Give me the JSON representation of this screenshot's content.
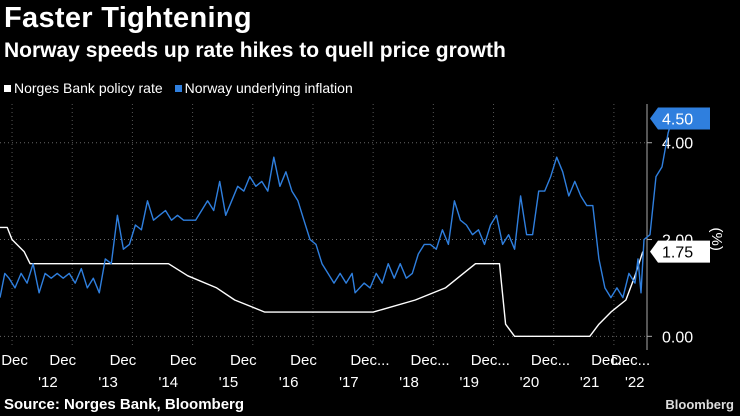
{
  "title": "Faster Tightening",
  "subtitle": "Norway speeds up rate hikes to quell price growth",
  "footer": "Source: Norges Bank, Bloomberg",
  "brand": "Bloomberg",
  "colors": {
    "policy": "#ffffff",
    "inflation": "#2f7fde",
    "bg": "#000000",
    "grid": "#666666"
  },
  "chart_data": {
    "type": "line",
    "title": "Faster Tightening",
    "ylabel": "(%)",
    "ylim": [
      -0.2,
      4.8
    ],
    "yticks": [
      0.0,
      2.0,
      4.0
    ],
    "ytick_labels": [
      "0.00",
      "2.00",
      "4.00"
    ],
    "month_labels": [
      "Dec",
      "Dec",
      "Dec",
      "Dec",
      "Dec",
      "Dec",
      "Dec...",
      "Dec...",
      "Dec...",
      "Dec...",
      "Dec...",
      "Dec..."
    ],
    "month_x": [
      2011.92,
      2012.92,
      2013.92,
      2014.92,
      2015.92,
      2016.92,
      2017.92,
      2018.92,
      2019.92,
      2020.92,
      2021.92,
      2022.25
    ],
    "year_labels": [
      "'12",
      "'13",
      "'14",
      "'15",
      "'16",
      "'17",
      "'18",
      "'19",
      "'20",
      "'21",
      "'22"
    ],
    "year_x": [
      2012.6,
      2013.6,
      2014.6,
      2015.6,
      2016.6,
      2017.6,
      2018.6,
      2019.6,
      2020.6,
      2021.6,
      2022.35
    ],
    "xlim": [
      2011.8,
      2022.55
    ],
    "series": [
      {
        "name": "Norges Bank policy rate",
        "last_label": "1.75",
        "points": [
          [
            2011.8,
            2.25
          ],
          [
            2011.92,
            2.25
          ],
          [
            2012.0,
            2.0
          ],
          [
            2012.2,
            1.75
          ],
          [
            2012.3,
            1.5
          ],
          [
            2013.0,
            1.5
          ],
          [
            2013.5,
            1.5
          ],
          [
            2014.0,
            1.5
          ],
          [
            2014.6,
            1.5
          ],
          [
            2014.92,
            1.25
          ],
          [
            2015.4,
            1.0
          ],
          [
            2015.7,
            0.75
          ],
          [
            2016.2,
            0.5
          ],
          [
            2017.0,
            0.5
          ],
          [
            2018.0,
            0.5
          ],
          [
            2018.7,
            0.75
          ],
          [
            2019.2,
            1.0
          ],
          [
            2019.45,
            1.25
          ],
          [
            2019.7,
            1.5
          ],
          [
            2020.1,
            1.5
          ],
          [
            2020.2,
            0.25
          ],
          [
            2020.35,
            0.0
          ],
          [
            2021.0,
            0.0
          ],
          [
            2021.6,
            0.0
          ],
          [
            2021.75,
            0.25
          ],
          [
            2021.95,
            0.5
          ],
          [
            2022.2,
            0.75
          ],
          [
            2022.35,
            1.25
          ],
          [
            2022.48,
            1.75
          ]
        ]
      },
      {
        "name": "Norway underlying inflation",
        "last_label": "4.50",
        "points": [
          [
            2011.8,
            0.8
          ],
          [
            2011.88,
            1.3
          ],
          [
            2011.95,
            1.2
          ],
          [
            2012.05,
            1.0
          ],
          [
            2012.15,
            1.3
          ],
          [
            2012.25,
            1.1
          ],
          [
            2012.35,
            1.5
          ],
          [
            2012.45,
            0.9
          ],
          [
            2012.55,
            1.3
          ],
          [
            2012.65,
            1.2
          ],
          [
            2012.75,
            1.3
          ],
          [
            2012.85,
            1.2
          ],
          [
            2012.95,
            1.3
          ],
          [
            2013.05,
            1.1
          ],
          [
            2013.15,
            1.4
          ],
          [
            2013.25,
            1.0
          ],
          [
            2013.35,
            1.2
          ],
          [
            2013.45,
            0.9
          ],
          [
            2013.55,
            1.6
          ],
          [
            2013.65,
            1.5
          ],
          [
            2013.75,
            2.5
          ],
          [
            2013.85,
            1.8
          ],
          [
            2013.95,
            1.9
          ],
          [
            2014.05,
            2.3
          ],
          [
            2014.15,
            2.2
          ],
          [
            2014.25,
            2.8
          ],
          [
            2014.35,
            2.4
          ],
          [
            2014.45,
            2.5
          ],
          [
            2014.55,
            2.6
          ],
          [
            2014.65,
            2.4
          ],
          [
            2014.75,
            2.5
          ],
          [
            2014.85,
            2.4
          ],
          [
            2014.95,
            2.4
          ],
          [
            2015.05,
            2.4
          ],
          [
            2015.15,
            2.6
          ],
          [
            2015.25,
            2.8
          ],
          [
            2015.35,
            2.6
          ],
          [
            2015.45,
            3.2
          ],
          [
            2015.55,
            2.5
          ],
          [
            2015.65,
            2.8
          ],
          [
            2015.75,
            3.1
          ],
          [
            2015.85,
            3.0
          ],
          [
            2015.95,
            3.3
          ],
          [
            2016.05,
            3.1
          ],
          [
            2016.15,
            3.2
          ],
          [
            2016.25,
            3.0
          ],
          [
            2016.35,
            3.7
          ],
          [
            2016.45,
            3.1
          ],
          [
            2016.55,
            3.4
          ],
          [
            2016.65,
            3.0
          ],
          [
            2016.75,
            2.8
          ],
          [
            2016.85,
            2.4
          ],
          [
            2016.95,
            2.0
          ],
          [
            2017.05,
            1.9
          ],
          [
            2017.15,
            1.5
          ],
          [
            2017.25,
            1.3
          ],
          [
            2017.35,
            1.1
          ],
          [
            2017.45,
            1.3
          ],
          [
            2017.55,
            1.1
          ],
          [
            2017.65,
            1.3
          ],
          [
            2017.7,
            0.9
          ],
          [
            2017.85,
            1.1
          ],
          [
            2017.95,
            1.0
          ],
          [
            2018.05,
            1.3
          ],
          [
            2018.15,
            1.1
          ],
          [
            2018.25,
            1.5
          ],
          [
            2018.35,
            1.2
          ],
          [
            2018.45,
            1.5
          ],
          [
            2018.55,
            1.2
          ],
          [
            2018.65,
            1.3
          ],
          [
            2018.75,
            1.7
          ],
          [
            2018.85,
            1.9
          ],
          [
            2018.95,
            1.9
          ],
          [
            2019.05,
            1.8
          ],
          [
            2019.15,
            2.2
          ],
          [
            2019.25,
            1.9
          ],
          [
            2019.35,
            2.8
          ],
          [
            2019.45,
            2.4
          ],
          [
            2019.55,
            2.3
          ],
          [
            2019.65,
            2.1
          ],
          [
            2019.75,
            2.2
          ],
          [
            2019.85,
            1.9
          ],
          [
            2019.95,
            2.3
          ],
          [
            2020.05,
            2.5
          ],
          [
            2020.15,
            1.9
          ],
          [
            2020.25,
            2.1
          ],
          [
            2020.35,
            1.8
          ],
          [
            2020.45,
            2.9
          ],
          [
            2020.55,
            2.1
          ],
          [
            2020.65,
            2.1
          ],
          [
            2020.75,
            3.0
          ],
          [
            2020.85,
            3.0
          ],
          [
            2020.95,
            3.3
          ],
          [
            2021.05,
            3.7
          ],
          [
            2021.15,
            3.4
          ],
          [
            2021.25,
            2.9
          ],
          [
            2021.35,
            3.2
          ],
          [
            2021.45,
            2.9
          ],
          [
            2021.55,
            2.7
          ],
          [
            2021.65,
            2.7
          ],
          [
            2021.75,
            1.6
          ],
          [
            2021.85,
            1.0
          ],
          [
            2021.95,
            0.8
          ],
          [
            2022.05,
            1.0
          ],
          [
            2022.15,
            0.8
          ],
          [
            2022.25,
            1.3
          ],
          [
            2022.35,
            1.1
          ],
          [
            2022.4,
            1.6
          ],
          [
            2022.45,
            0.9
          ],
          [
            2022.5,
            2.0
          ],
          [
            2022.6,
            2.1
          ],
          [
            2022.7,
            3.3
          ],
          [
            2022.8,
            3.5
          ],
          [
            2022.9,
            4.2
          ],
          [
            2022.97,
            4.5
          ]
        ]
      }
    ]
  }
}
